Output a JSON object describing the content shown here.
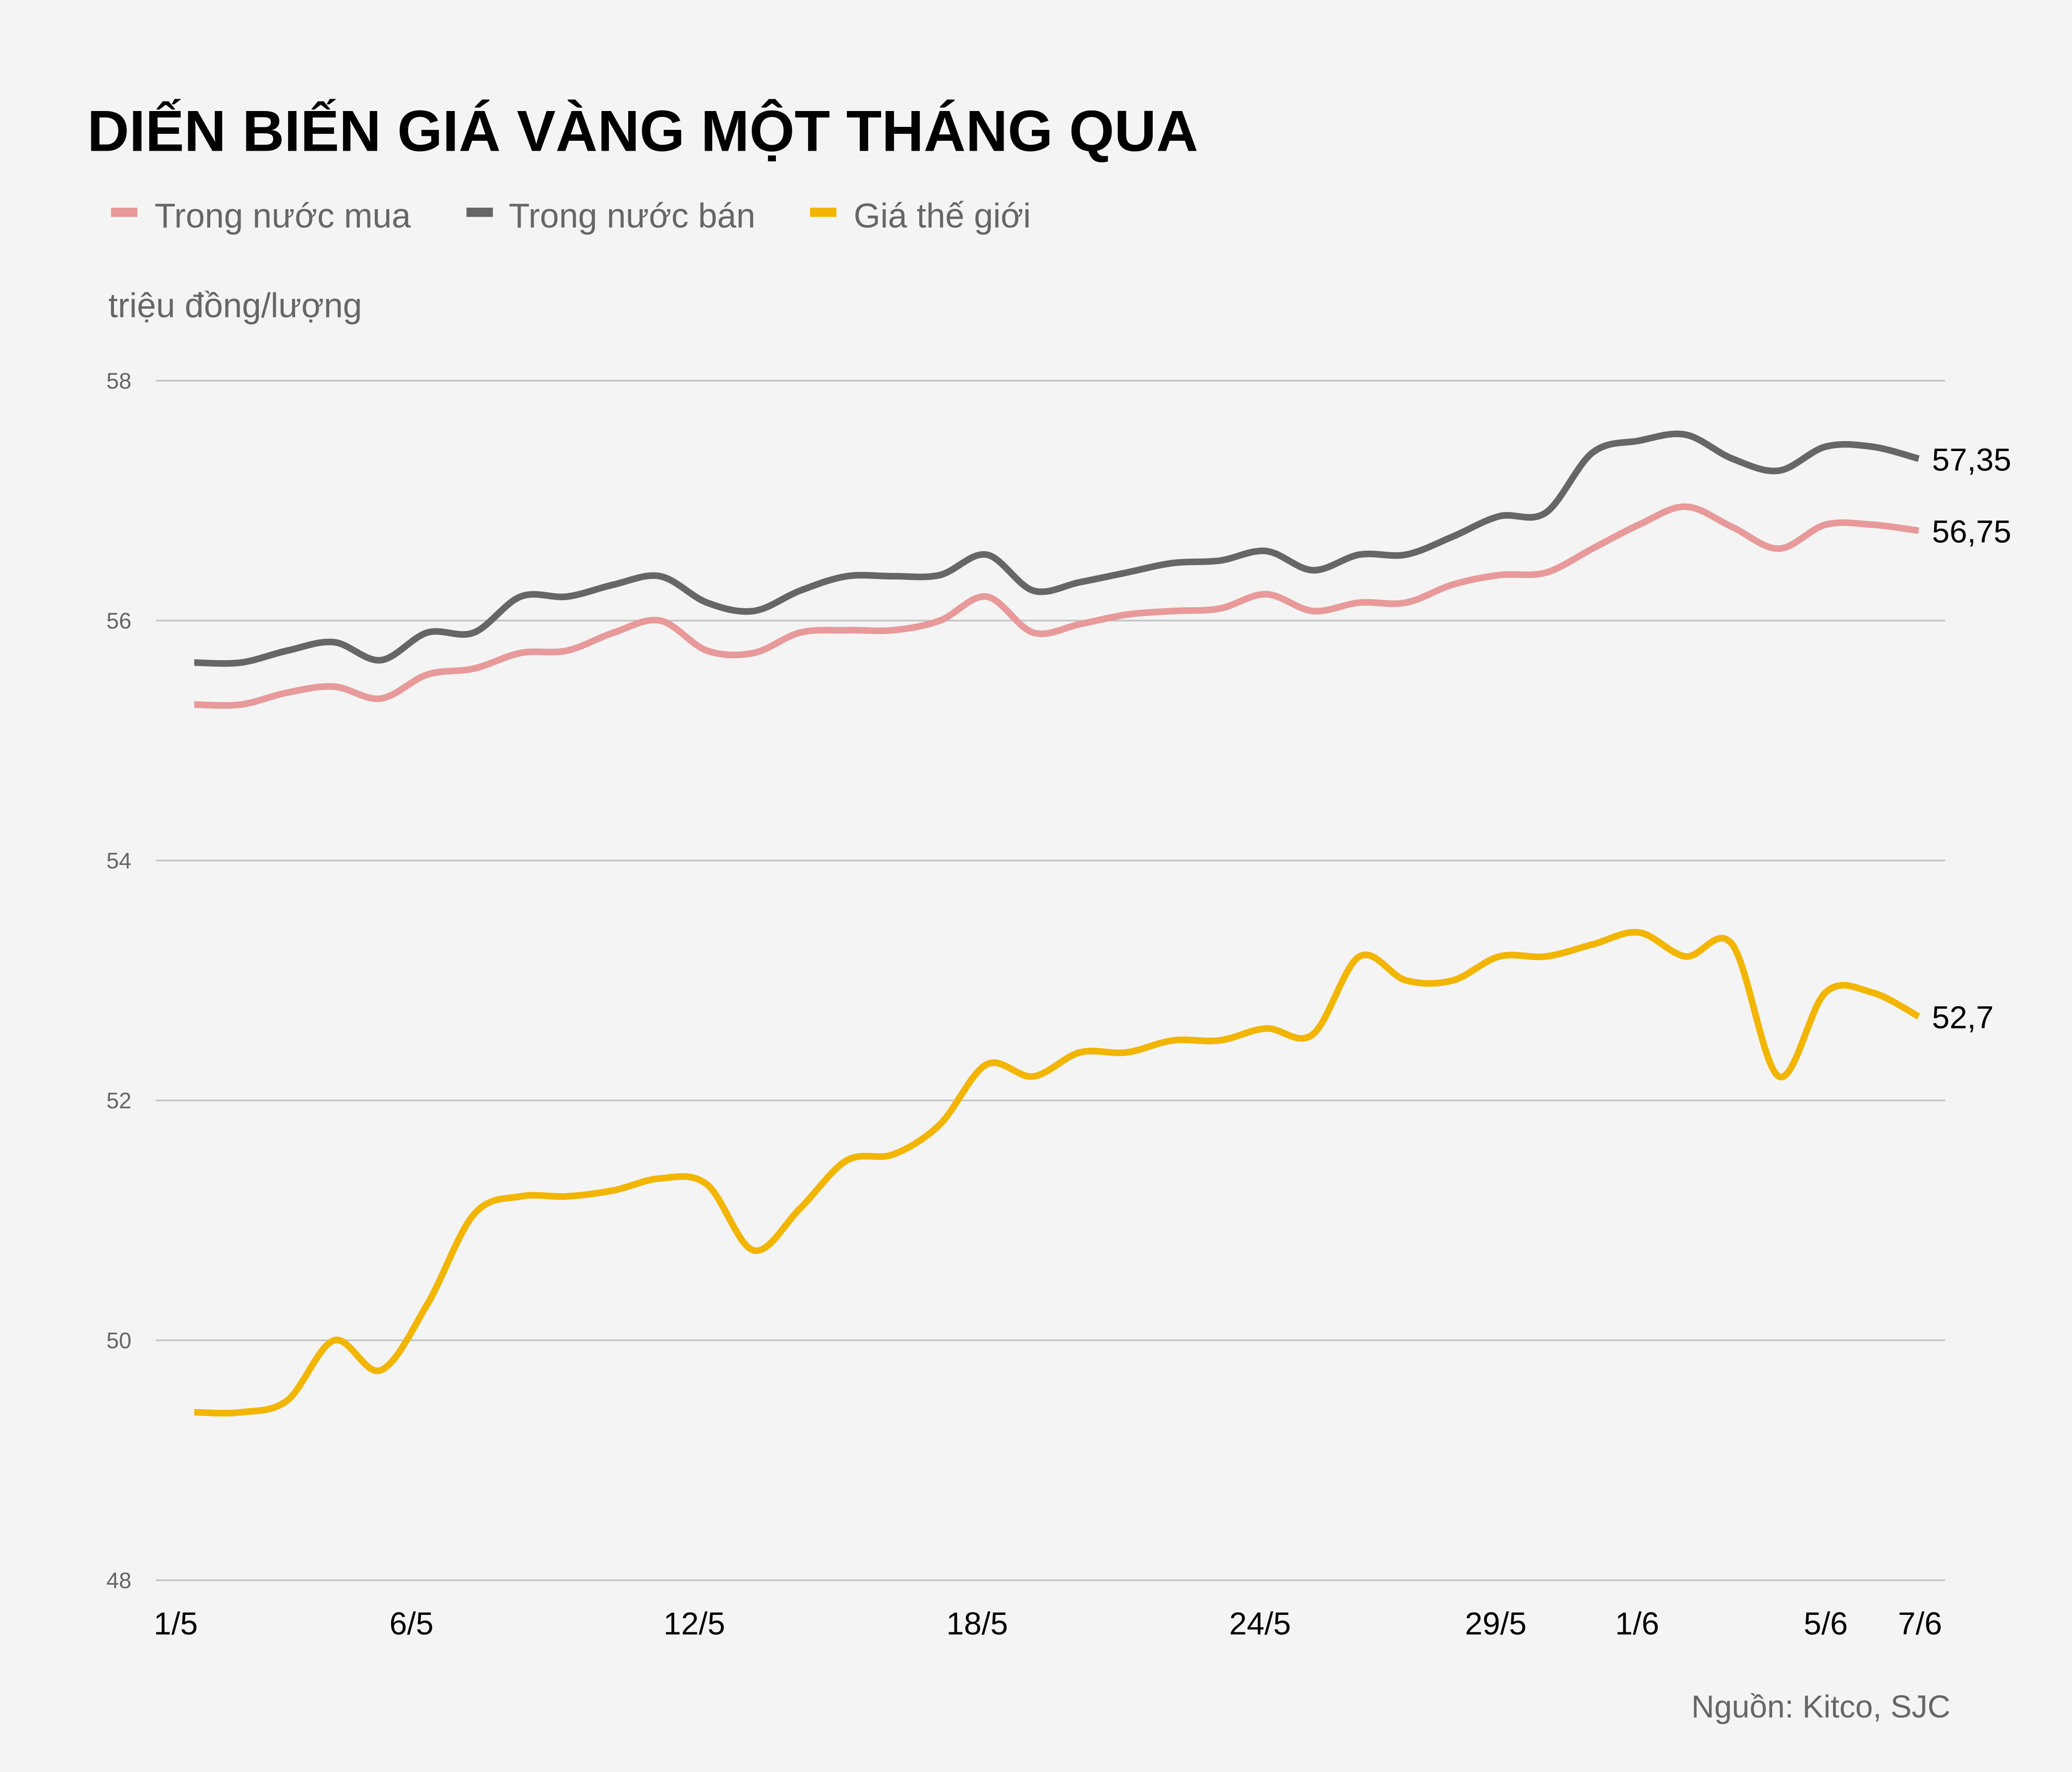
{
  "chart_data": {
    "type": "line",
    "title": "DIẾN BIẾN GIÁ VÀNG MỘT THÁNG QUA",
    "ylabel": "triệu đồng/lượng",
    "source": "Nguồn: Kitco, SJC",
    "ylim": [
      48,
      58
    ],
    "yticks": [
      "48",
      "50",
      "52",
      "54",
      "56",
      "58"
    ],
    "grid": "horizontal",
    "legend_position": "top-left",
    "x": [
      "1/5",
      "2/5",
      "3/5",
      "4/5",
      "5/5",
      "6/5",
      "7/5",
      "8/5",
      "9/5",
      "10/5",
      "11/5",
      "12/5",
      "13/5",
      "14/5",
      "15/5",
      "16/5",
      "17/5",
      "18/5",
      "19/5",
      "20/5",
      "21/5",
      "22/5",
      "23/5",
      "24/5",
      "25/5",
      "26/5",
      "27/5",
      "28/5",
      "29/5",
      "30/5",
      "31/5",
      "1/6",
      "2/6",
      "3/6",
      "4/6",
      "5/6",
      "6/6",
      "7/6"
    ],
    "xticks": [
      "1/5",
      "6/5",
      "12/5",
      "18/5",
      "24/5",
      "29/5",
      "1/6",
      "5/6",
      "7/6"
    ],
    "series": [
      {
        "name": "Trong nước mua",
        "color": "#e8999a",
        "end_label": "56,75",
        "values": [
          55.3,
          55.3,
          55.4,
          55.45,
          55.35,
          55.55,
          55.6,
          55.73,
          55.75,
          55.9,
          56.0,
          55.75,
          55.73,
          55.9,
          55.92,
          55.92,
          56.0,
          56.2,
          55.9,
          55.97,
          56.05,
          56.08,
          56.1,
          56.22,
          56.08,
          56.15,
          56.15,
          56.3,
          56.38,
          56.4,
          56.6,
          56.8,
          56.95,
          56.78,
          56.6,
          56.8,
          56.8,
          56.75
        ]
      },
      {
        "name": "Trong nước bán",
        "color": "#666666",
        "end_label": "57,35",
        "values": [
          55.65,
          55.65,
          55.75,
          55.82,
          55.67,
          55.9,
          55.9,
          56.2,
          56.2,
          56.3,
          56.37,
          56.15,
          56.08,
          56.25,
          56.37,
          56.37,
          56.38,
          56.55,
          56.25,
          56.32,
          56.4,
          56.48,
          56.5,
          56.58,
          56.42,
          56.55,
          56.55,
          56.7,
          56.87,
          56.9,
          57.4,
          57.5,
          57.55,
          57.35,
          57.25,
          57.45,
          57.45,
          57.35
        ]
      },
      {
        "name": "Giá thế giới",
        "color": "#f2b500",
        "end_label": "52,7",
        "values": [
          49.4,
          49.4,
          49.5,
          50.0,
          49.75,
          50.3,
          51.05,
          51.2,
          51.2,
          51.25,
          51.35,
          51.3,
          50.75,
          51.1,
          51.5,
          51.55,
          51.8,
          52.3,
          52.2,
          52.4,
          52.4,
          52.5,
          52.5,
          52.6,
          52.55,
          53.2,
          53.0,
          53.0,
          53.2,
          53.2,
          53.3,
          53.4,
          53.2,
          53.3,
          52.2,
          52.9,
          52.9,
          52.7
        ]
      }
    ]
  },
  "colors": {
    "background": "#f4f4f4",
    "grid": "#c0c0c0"
  }
}
